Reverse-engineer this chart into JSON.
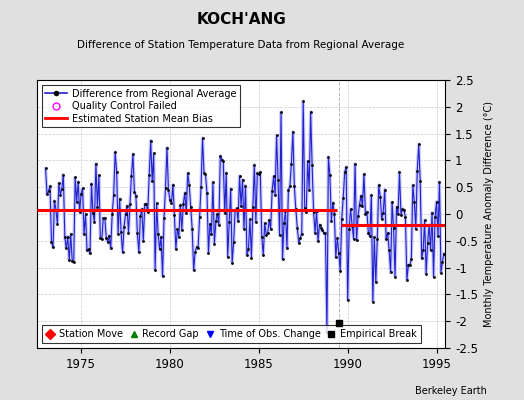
{
  "title": "KOCH'ANG",
  "subtitle": "Difference of Station Temperature Data from Regional Average",
  "ylabel": "Monthly Temperature Anomaly Difference (°C)",
  "ylim": [
    -2.5,
    2.5
  ],
  "xlim": [
    1972.5,
    1995.5
  ],
  "yticks": [
    -2.5,
    -2,
    -1.5,
    -1,
    -0.5,
    0,
    0.5,
    1,
    1.5,
    2,
    2.5
  ],
  "ytick_labels": [
    "-2.5",
    "-2",
    "-1.5",
    "-1",
    "-0.5",
    "0",
    "0.5",
    "1",
    "1.5",
    "2",
    "2.5"
  ],
  "xticks": [
    1975,
    1980,
    1985,
    1990,
    1995
  ],
  "bias_line1_y": 0.08,
  "bias_line1_x_start": 1972.5,
  "bias_line1_x_end": 1989.4,
  "bias_line2_y": -0.2,
  "bias_line2_x_start": 1989.6,
  "bias_line2_x_end": 1995.5,
  "break_x": 1989.5,
  "empirical_break_x": 1989.5,
  "empirical_break_y": -2.03,
  "background_color": "#e0e0e0",
  "plot_bg_color": "#ffffff",
  "line_color": "#2222cc",
  "line_alpha": 1.0,
  "bias_color": "#ff0000",
  "watermark": "Berkeley Earth",
  "seed": 42
}
